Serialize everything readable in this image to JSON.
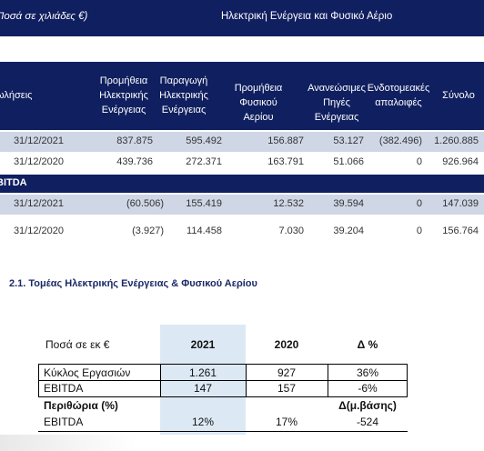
{
  "banner": {
    "unit": "Ποσά σε χιλιάδες €)",
    "title": "Ηλεκτρική Ενέργεια και Φυσικό Αέριο"
  },
  "table1": {
    "headers": [
      "ωλήσεις",
      "Προμήθεια\nΗλεκτρικής\nΕνέργειας",
      "Παραγωγή\nΗλεκτρικής\nΕνέργειας",
      "Προμήθεια Φυσικού\nΑερίου",
      "Ανανεώσιμες\nΠηγές Ενέργειας",
      "Ενδοτομεακές\nαπαλοιφές",
      "Σύνολο"
    ],
    "sales_rows": [
      {
        "date": "31/12/2021",
        "values": [
          "837.875",
          "595.492",
          "156.887",
          "53.127",
          "(382.496)",
          "1.260.885"
        ]
      },
      {
        "date": "31/12/2020",
        "values": [
          "439.736",
          "272.371",
          "163.791",
          "51.066",
          "0",
          "926.964"
        ]
      }
    ],
    "ebitda_label": "BITDA",
    "ebitda_rows": [
      {
        "date": "31/12/2021",
        "values": [
          "(60.506)",
          "155.419",
          "12.532",
          "39.594",
          "0",
          "147.039"
        ]
      },
      {
        "date": "31/12/2020",
        "values": [
          "(3.927)",
          "114.458",
          "7.030",
          "39.204",
          "0",
          "156.764"
        ]
      }
    ]
  },
  "section_heading": "2.1.  Τομέας Ηλεκτρικής Ενέργειας & Φυσικού Αερίου",
  "table2": {
    "head": {
      "label": "Ποσά σε εκ €",
      "y2021": "2021",
      "y2020": "2020",
      "delta": "Δ %"
    },
    "rows": [
      {
        "label": "Κύκλος Εργασιών",
        "y2021": "1.261",
        "y2020": "927",
        "delta": "36%"
      },
      {
        "label": "EBITDA",
        "y2021": "147",
        "y2020": "157",
        "delta": "-6%"
      }
    ],
    "margins": {
      "label": "Περιθώρια (%)",
      "delta": "Δ(μ.βάσης)"
    },
    "margin_rows": [
      {
        "label": "EBITDA",
        "y2021": "12%",
        "y2020": "17%",
        "delta": "-524"
      }
    ]
  },
  "colors": {
    "navy": "#0f1f5f",
    "shade": "#cfd6e6",
    "highlight": "#dce9f5"
  }
}
